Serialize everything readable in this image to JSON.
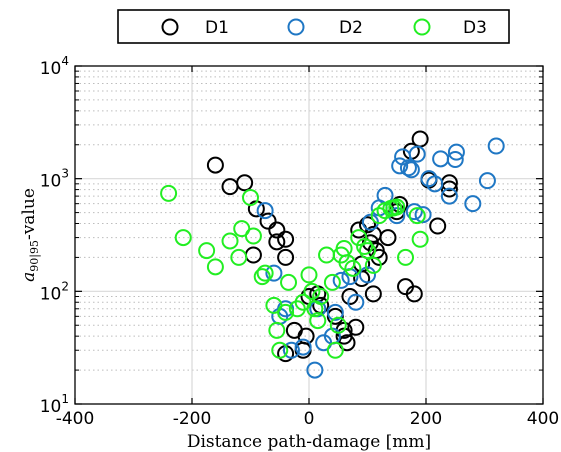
{
  "chart_data": {
    "type": "scatter",
    "xlabel": "Distance path-damage [mm]",
    "ylabel_main": "a",
    "ylabel_sub": "90|95",
    "ylabel_suffix": "-value",
    "xlim": [
      -400,
      400
    ],
    "ylim": [
      10,
      10000
    ],
    "yscale": "log",
    "grid": true,
    "legend_placement": "top-outside",
    "x_ticks": [
      "-400",
      "-200",
      "0",
      "200",
      "400"
    ],
    "y_ticks": [
      {
        "base": "10",
        "exp": "1"
      },
      {
        "base": "10",
        "exp": "2"
      },
      {
        "base": "10",
        "exp": "3"
      },
      {
        "base": "10",
        "exp": "4"
      }
    ],
    "series": [
      {
        "name": "D1",
        "color": "#000000",
        "points": [
          [
            -160,
            1320
          ],
          [
            -135,
            850
          ],
          [
            -110,
            920
          ],
          [
            -90,
            540
          ],
          [
            -70,
            420
          ],
          [
            -55,
            350
          ],
          [
            -40,
            290
          ],
          [
            -95,
            210
          ],
          [
            -55,
            275
          ],
          [
            -40,
            200
          ],
          [
            -25,
            45
          ],
          [
            -40,
            28
          ],
          [
            -5,
            40
          ],
          [
            -10,
            30
          ],
          [
            0,
            90
          ],
          [
            15,
            95
          ],
          [
            20,
            75
          ],
          [
            45,
            60
          ],
          [
            60,
            45
          ],
          [
            80,
            48
          ],
          [
            65,
            35
          ],
          [
            60,
            40
          ],
          [
            70,
            90
          ],
          [
            90,
            130
          ],
          [
            90,
            175
          ],
          [
            85,
            350
          ],
          [
            100,
            390
          ],
          [
            105,
            270
          ],
          [
            110,
            320
          ],
          [
            115,
            230
          ],
          [
            120,
            200
          ],
          [
            110,
            95
          ],
          [
            135,
            300
          ],
          [
            150,
            510
          ],
          [
            165,
            110
          ],
          [
            180,
            95
          ],
          [
            175,
            1750
          ],
          [
            190,
            2250
          ],
          [
            205,
            970
          ],
          [
            220,
            380
          ],
          [
            240,
            920
          ],
          [
            240,
            810
          ],
          [
            155,
            590
          ]
        ]
      },
      {
        "name": "D2",
        "color": "#1f77c4",
        "points": [
          [
            -75,
            520
          ],
          [
            -60,
            145
          ],
          [
            -50,
            60
          ],
          [
            -40,
            70
          ],
          [
            -30,
            30
          ],
          [
            -10,
            32
          ],
          [
            10,
            20
          ],
          [
            15,
            70
          ],
          [
            25,
            35
          ],
          [
            40,
            40
          ],
          [
            45,
            65
          ],
          [
            55,
            125
          ],
          [
            70,
            135
          ],
          [
            80,
            80
          ],
          [
            100,
            140
          ],
          [
            105,
            410
          ],
          [
            120,
            550
          ],
          [
            130,
            710
          ],
          [
            150,
            470
          ],
          [
            155,
            1300
          ],
          [
            160,
            1560
          ],
          [
            170,
            1250
          ],
          [
            175,
            1200
          ],
          [
            180,
            510
          ],
          [
            185,
            1650
          ],
          [
            195,
            480
          ],
          [
            205,
            1000
          ],
          [
            215,
            900
          ],
          [
            225,
            1500
          ],
          [
            240,
            700
          ],
          [
            250,
            1480
          ],
          [
            252,
            1720
          ],
          [
            280,
            600
          ],
          [
            305,
            960
          ],
          [
            320,
            1950
          ]
        ]
      },
      {
        "name": "D3",
        "color": "#22ee22",
        "points": [
          [
            -240,
            740
          ],
          [
            -215,
            300
          ],
          [
            -175,
            230
          ],
          [
            -160,
            165
          ],
          [
            -135,
            280
          ],
          [
            -120,
            200
          ],
          [
            -115,
            360
          ],
          [
            -100,
            680
          ],
          [
            -95,
            310
          ],
          [
            -80,
            135
          ],
          [
            -75,
            145
          ],
          [
            -60,
            75
          ],
          [
            -55,
            45
          ],
          [
            -50,
            30
          ],
          [
            -40,
            65
          ],
          [
            -35,
            120
          ],
          [
            -20,
            70
          ],
          [
            -10,
            80
          ],
          [
            0,
            140
          ],
          [
            5,
            100
          ],
          [
            10,
            70
          ],
          [
            15,
            55
          ],
          [
            20,
            90
          ],
          [
            30,
            210
          ],
          [
            40,
            120
          ],
          [
            45,
            30
          ],
          [
            50,
            50
          ],
          [
            55,
            210
          ],
          [
            60,
            240
          ],
          [
            65,
            180
          ],
          [
            75,
            160
          ],
          [
            85,
            300
          ],
          [
            95,
            250
          ],
          [
            100,
            230
          ],
          [
            110,
            170
          ],
          [
            130,
            520
          ],
          [
            140,
            545
          ],
          [
            150,
            560
          ],
          [
            165,
            200
          ],
          [
            185,
            470
          ],
          [
            190,
            290
          ],
          [
            120,
            470
          ],
          [
            145,
            550
          ]
        ]
      }
    ]
  }
}
